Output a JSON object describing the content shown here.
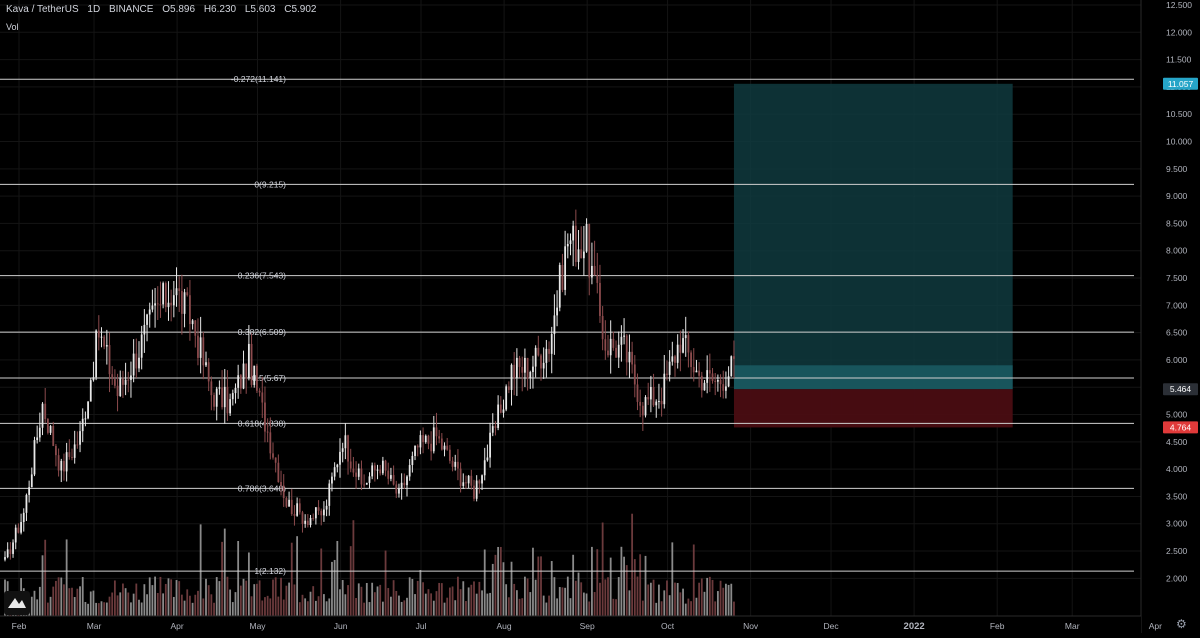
{
  "header": {
    "symbol": "Kava / TetherUS",
    "interval": "1D",
    "exchange": "BINANCE",
    "open": "O5.896",
    "high": "H6.230",
    "low": "L5.603",
    "close": "C5.902"
  },
  "volume_label": "Vol",
  "icons": {
    "logo": "tradingview-logo-icon",
    "settings": "gear-icon"
  },
  "colors": {
    "background": "#000000",
    "up_candle": "#e8e8e8",
    "down_candle": "#8c4b4d",
    "fib_line": "#d0d0d0",
    "profit_zone": "#0f3a3e",
    "loss_zone": "#4a0d12",
    "target_badge": "#26a5c8",
    "stop_badge": "#e03a3a"
  },
  "chart_data": {
    "type": "candlestick",
    "symbol": "Kava / TetherUS",
    "interval": "1D",
    "exchange": "BINANCE",
    "y_axis": {
      "ylim": [
        1.75,
        12.5
      ],
      "ticks": [
        "12.500",
        "12.000",
        "11.500",
        "11.000",
        "10.500",
        "10.000",
        "9.500",
        "9.000",
        "8.500",
        "8.000",
        "7.500",
        "7.000",
        "6.500",
        "6.000",
        "5.500",
        "5.000",
        "4.500",
        "4.000",
        "3.500",
        "3.000",
        "2.500",
        "2.000"
      ],
      "badges": [
        {
          "label": "11.057",
          "value": 11.057,
          "color": "#26a5c8"
        },
        {
          "label": "5.464",
          "value": 5.464,
          "color": "#2b2f36"
        },
        {
          "label": "4.764",
          "value": 4.764,
          "color": "#e03a3a"
        }
      ]
    },
    "x_axis": {
      "ticks": [
        "Feb",
        "Mar",
        "Apr",
        "May",
        "Jun",
        "Jul",
        "Aug",
        "Sep",
        "Oct",
        "Nov",
        "Dec",
        "2022",
        "Feb",
        "Mar",
        "Apr"
      ],
      "day_offsets": [
        0,
        28,
        59,
        89,
        120,
        150,
        181,
        212,
        242,
        273,
        303,
        334,
        365,
        393,
        424
      ]
    },
    "fib_levels": [
      {
        "label": "-0.272(11.141)",
        "ratio": -0.272,
        "value": 11.141
      },
      {
        "label": "0(9.215)",
        "ratio": 0,
        "value": 9.215
      },
      {
        "label": "0.236(7.543)",
        "ratio": 0.236,
        "value": 7.543
      },
      {
        "label": "0.382(6.509)",
        "ratio": 0.382,
        "value": 6.509
      },
      {
        "label": "0.5(5.67)",
        "ratio": 0.5,
        "value": 5.67
      },
      {
        "label": "0.618(4.838)",
        "ratio": 0.618,
        "value": 4.838
      },
      {
        "label": "0.786(3.648)",
        "ratio": 0.786,
        "value": 3.648
      },
      {
        "label": "1(2.132)",
        "ratio": 1,
        "value": 2.132
      }
    ],
    "position_tool": {
      "start_day": 272,
      "end_day": 376,
      "entry": 5.464,
      "target": 11.057,
      "stop": 4.764,
      "current": 5.902
    },
    "price_path_weekly": [
      {
        "day": 0,
        "close": 2.3
      },
      {
        "day": 7,
        "close": 3.2
      },
      {
        "day": 14,
        "close": 5.2
      },
      {
        "day": 21,
        "close": 4.0
      },
      {
        "day": 28,
        "close": 4.6
      },
      {
        "day": 35,
        "close": 6.5
      },
      {
        "day": 42,
        "close": 5.4
      },
      {
        "day": 49,
        "close": 6.1
      },
      {
        "day": 56,
        "close": 6.9
      },
      {
        "day": 63,
        "close": 7.3
      },
      {
        "day": 70,
        "close": 6.7
      },
      {
        "day": 77,
        "close": 5.4
      },
      {
        "day": 84,
        "close": 5.2
      },
      {
        "day": 91,
        "close": 6.0
      },
      {
        "day": 98,
        "close": 4.7
      },
      {
        "day": 105,
        "close": 3.4
      },
      {
        "day": 112,
        "close": 3.1
      },
      {
        "day": 119,
        "close": 3.2
      },
      {
        "day": 126,
        "close": 4.6
      },
      {
        "day": 133,
        "close": 3.7
      },
      {
        "day": 140,
        "close": 4.1
      },
      {
        "day": 147,
        "close": 3.5
      },
      {
        "day": 154,
        "close": 4.4
      },
      {
        "day": 161,
        "close": 4.6
      },
      {
        "day": 168,
        "close": 4.0
      },
      {
        "day": 175,
        "close": 3.6
      },
      {
        "day": 182,
        "close": 4.6
      },
      {
        "day": 189,
        "close": 5.8
      },
      {
        "day": 196,
        "close": 5.9
      },
      {
        "day": 203,
        "close": 6.3
      },
      {
        "day": 210,
        "close": 8.2
      },
      {
        "day": 217,
        "close": 8.1
      },
      {
        "day": 224,
        "close": 6.3
      },
      {
        "day": 231,
        "close": 6.2
      },
      {
        "day": 238,
        "close": 5.2
      },
      {
        "day": 245,
        "close": 5.4
      },
      {
        "day": 252,
        "close": 6.4
      },
      {
        "day": 259,
        "close": 5.7
      },
      {
        "day": 266,
        "close": 5.6
      },
      {
        "day": 272,
        "close": 5.9
      }
    ]
  }
}
